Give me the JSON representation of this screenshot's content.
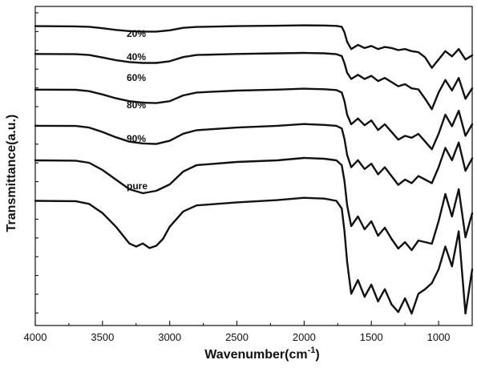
{
  "chart_data": {
    "type": "line",
    "xlabel": "Wavenumber(cm",
    "xlabel_superscript": "-1",
    "xlabel_suffix": ")",
    "ylabel": "Transmittance(a.u.)",
    "xlim": [
      4000,
      750
    ],
    "x_reversed": true,
    "xticks": [
      4000,
      3500,
      3000,
      2500,
      2000,
      1500,
      1000
    ],
    "y_tick_labels": false,
    "grid": false,
    "line_color": "#111111",
    "series": [
      {
        "name": "20%",
        "x": [
          4000,
          3700,
          3600,
          3500,
          3400,
          3300,
          3200,
          3100,
          3000,
          2900,
          2800,
          2500,
          2200,
          2000,
          1850,
          1760,
          1720,
          1700,
          1680,
          1650,
          1600,
          1550,
          1500,
          1450,
          1400,
          1350,
          1300,
          1250,
          1200,
          1150,
          1100,
          1050,
          1000,
          950,
          900,
          850,
          800,
          750
        ],
        "y": [
          0.1,
          0.11,
          0.13,
          0.2,
          0.28,
          0.34,
          0.36,
          0.36,
          0.3,
          0.18,
          0.14,
          0.1,
          0.08,
          0.06,
          0.07,
          0.09,
          0.13,
          0.4,
          0.85,
          1.2,
          1.0,
          1.15,
          1.05,
          1.2,
          1.1,
          1.15,
          1.25,
          1.2,
          1.3,
          1.35,
          1.6,
          2.1,
          1.7,
          1.3,
          1.55,
          1.2,
          1.7,
          1.5
        ]
      },
      {
        "name": "40%",
        "x": [
          4000,
          3700,
          3600,
          3500,
          3400,
          3300,
          3200,
          3100,
          3000,
          2900,
          2800,
          2500,
          2200,
          2000,
          1850,
          1760,
          1720,
          1700,
          1680,
          1650,
          1600,
          1550,
          1500,
          1450,
          1400,
          1350,
          1300,
          1250,
          1200,
          1150,
          1100,
          1050,
          1000,
          950,
          900,
          850,
          800,
          750
        ],
        "y": [
          0.55,
          0.56,
          0.6,
          0.72,
          0.85,
          0.94,
          0.98,
          0.98,
          0.9,
          0.7,
          0.6,
          0.55,
          0.52,
          0.5,
          0.52,
          0.56,
          0.65,
          1.0,
          1.45,
          1.75,
          1.55,
          1.75,
          1.6,
          1.85,
          1.7,
          1.9,
          2.1,
          2.0,
          2.2,
          2.25,
          2.7,
          3.2,
          2.4,
          1.8,
          2.3,
          1.7,
          2.7,
          2.2
        ]
      },
      {
        "name": "60%",
        "x": [
          4000,
          3700,
          3600,
          3500,
          3400,
          3300,
          3200,
          3100,
          3000,
          2900,
          2800,
          2500,
          2200,
          2000,
          1850,
          1760,
          1720,
          1700,
          1680,
          1650,
          1600,
          1550,
          1500,
          1450,
          1400,
          1350,
          1300,
          1250,
          1200,
          1150,
          1100,
          1050,
          1000,
          950,
          900,
          850,
          800,
          750
        ],
        "y": [
          1.2,
          1.21,
          1.28,
          1.45,
          1.65,
          1.8,
          1.88,
          1.9,
          1.8,
          1.5,
          1.35,
          1.25,
          1.2,
          1.15,
          1.18,
          1.22,
          1.35,
          1.8,
          2.5,
          3.0,
          2.7,
          3.05,
          2.8,
          3.3,
          3.0,
          3.4,
          3.8,
          3.6,
          3.7,
          3.5,
          3.9,
          4.3,
          3.5,
          2.5,
          3.1,
          2.3,
          3.6,
          3.0
        ]
      },
      {
        "name": "80%",
        "x": [
          4000,
          3700,
          3600,
          3500,
          3400,
          3300,
          3200,
          3100,
          3000,
          2900,
          2800,
          2500,
          2200,
          2000,
          1850,
          1760,
          1720,
          1700,
          1680,
          1650,
          1600,
          1550,
          1500,
          1450,
          1400,
          1350,
          1300,
          1250,
          1200,
          1150,
          1100,
          1050,
          1000,
          950,
          900,
          850,
          800,
          750
        ],
        "y": [
          1.95,
          1.96,
          2.05,
          2.3,
          2.6,
          2.85,
          2.95,
          2.98,
          2.8,
          2.4,
          2.2,
          2.05,
          1.95,
          1.85,
          1.9,
          1.95,
          2.1,
          2.7,
          3.6,
          4.3,
          3.9,
          4.4,
          4.1,
          4.7,
          4.3,
          4.8,
          5.3,
          5.0,
          5.2,
          4.8,
          5.0,
          5.2,
          4.3,
          3.2,
          3.9,
          2.9,
          4.5,
          3.8
        ]
      },
      {
        "name": "90%",
        "x": [
          4000,
          3700,
          3600,
          3500,
          3400,
          3300,
          3200,
          3100,
          3000,
          2900,
          2800,
          2500,
          2200,
          2000,
          1850,
          1760,
          1720,
          1700,
          1680,
          1650,
          1600,
          1550,
          1500,
          1450,
          1400,
          1350,
          1300,
          1250,
          1200,
          1150,
          1100,
          1050,
          1000,
          950,
          900,
          850,
          800,
          750
        ],
        "y": [
          2.7,
          2.72,
          2.85,
          3.3,
          3.9,
          4.5,
          4.75,
          4.6,
          4.2,
          3.4,
          3.0,
          2.8,
          2.7,
          2.55,
          2.6,
          2.7,
          3.0,
          4.0,
          5.5,
          6.8,
          6.2,
          7.0,
          6.5,
          7.4,
          6.9,
          7.6,
          8.2,
          7.8,
          8.3,
          7.7,
          7.8,
          7.9,
          6.5,
          4.8,
          6.2,
          4.5,
          7.5,
          6.0
        ]
      },
      {
        "name": "pure",
        "x": [
          4000,
          3700,
          3600,
          3500,
          3400,
          3300,
          3250,
          3200,
          3150,
          3100,
          3050,
          3000,
          2900,
          2800,
          2500,
          2200,
          2000,
          1850,
          1760,
          1720,
          1700,
          1680,
          1650,
          1600,
          1550,
          1500,
          1450,
          1400,
          1350,
          1300,
          1250,
          1200,
          1150,
          1100,
          1050,
          1000,
          950,
          900,
          850,
          800,
          750
        ],
        "y": [
          3.5,
          3.52,
          3.7,
          4.3,
          5.2,
          6.3,
          6.5,
          6.3,
          6.6,
          6.45,
          6.0,
          5.2,
          4.2,
          3.8,
          3.6,
          3.45,
          3.3,
          3.35,
          3.5,
          4.0,
          5.5,
          7.5,
          9.6,
          8.7,
          9.8,
          9.0,
          10.1,
          9.3,
          10.3,
          10.8,
          9.9,
          10.9,
          9.6,
          9.3,
          8.9,
          8.0,
          6.5,
          7.8,
          5.5,
          10.9,
          8.0
        ]
      }
    ]
  }
}
